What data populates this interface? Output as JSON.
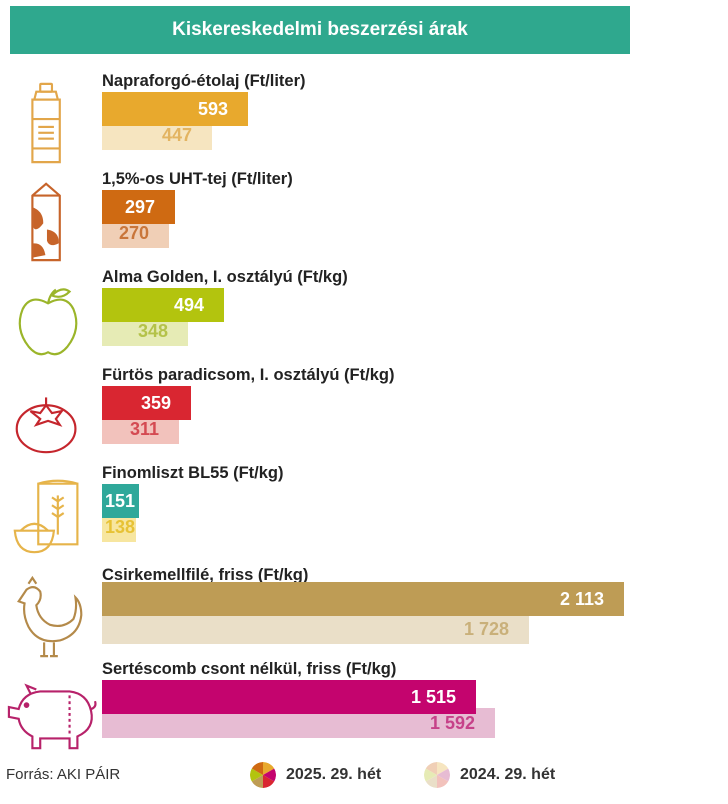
{
  "title": "Kiskereskedelmi beszerzési árak",
  "source": "Forrás: AKI PÁIR",
  "legend": [
    {
      "label": "2025. 29. hét",
      "swatch": "current"
    },
    {
      "label": "2024. 29. hét",
      "swatch": "previous"
    }
  ],
  "chart_data": {
    "type": "bar",
    "title": "Kiskereskedelmi beszerzési árak",
    "categories": [
      "Napraforgó-étolaj (Ft/liter)",
      "1,5%-os UHT-tej (Ft/liter)",
      "Alma Golden, I. osztályú (Ft/kg)",
      "Fürtös paradicsom, I. osztályú (Ft/kg)",
      "Finomliszt BL55 (Ft/kg)",
      "Csirkemellfilé, friss (Ft/kg)",
      "Sertéscomb csont nélkül, friss (Ft/kg)"
    ],
    "series": [
      {
        "name": "2025. 29. hét",
        "values": [
          593,
          297,
          494,
          359,
          151,
          2113,
          1515
        ]
      },
      {
        "name": "2024. 29. hét",
        "values": [
          447,
          270,
          348,
          311,
          138,
          1728,
          1592
        ]
      }
    ],
    "value_labels": {
      "current": [
        "593",
        "297",
        "494",
        "359",
        "151",
        "2 113",
        "1 515"
      ],
      "previous": [
        "447",
        "270",
        "348",
        "311",
        "138",
        "1 728",
        "1 592"
      ]
    },
    "xlim": [
      0,
      2113
    ],
    "grid": false,
    "legend_position": "bottom",
    "colors": {
      "current": [
        "#e8a92d",
        "#cf6a12",
        "#b3c40e",
        "#d92631",
        "#2fa89a",
        "#be9c55",
        "#c4046e"
      ],
      "previous": [
        "#f6e5c0",
        "#f0cfb6",
        "#e6ebb5",
        "#f2c2bc",
        "#f7e6a0",
        "#eadfc8",
        "#e7bcd3"
      ],
      "previous_text": [
        "#e3b461",
        "#c9763a",
        "#b4c24a",
        "#d44a52",
        "#e7c235",
        "#c9b07a",
        "#c64189"
      ]
    },
    "icons": [
      "oil-bottle-icon",
      "milk-carton-icon",
      "apple-icon",
      "tomato-icon",
      "flour-icon",
      "chicken-icon",
      "pig-icon"
    ]
  }
}
